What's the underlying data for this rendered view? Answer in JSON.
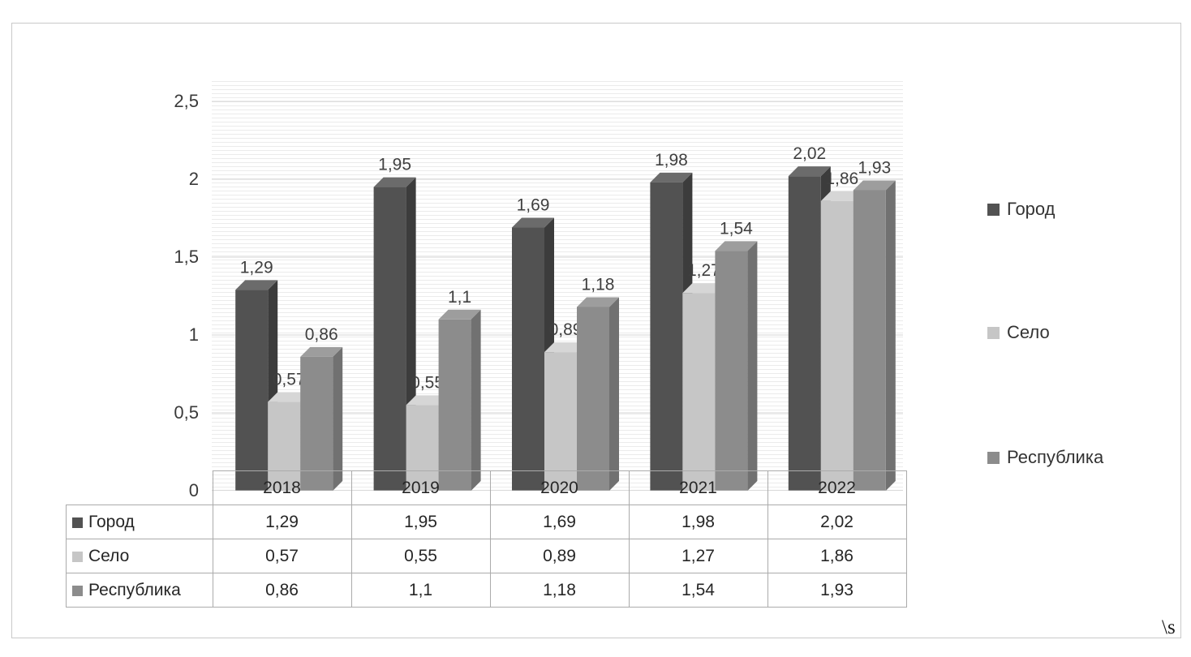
{
  "chart_data": {
    "type": "bar",
    "style": "3d-clustered-column",
    "title": "",
    "xlabel": "",
    "ylabel": "",
    "categories": [
      "2018",
      "2019",
      "2020",
      "2021",
      "2022"
    ],
    "series": [
      {
        "name": "Город",
        "values": [
          1.29,
          1.95,
          1.69,
          1.98,
          2.02
        ],
        "labels": [
          "1,29",
          "1,95",
          "1,69",
          "1,98",
          "2,02"
        ],
        "color": "#525252",
        "top": "#6b6b6b",
        "side": "#3c3c3c"
      },
      {
        "name": "Село",
        "values": [
          0.57,
          0.55,
          0.89,
          1.27,
          1.86
        ],
        "labels": [
          "0,57",
          "0,55",
          "0,89",
          "1,27",
          "1,86"
        ],
        "color": "#c6c6c6",
        "top": "#d6d6d6",
        "side": "#a7a7a7"
      },
      {
        "name": "Республика",
        "values": [
          0.86,
          1.1,
          1.18,
          1.54,
          1.93
        ],
        "labels": [
          "0,86",
          "1,1",
          "1,18",
          "1,54",
          "1,93"
        ],
        "color": "#8c8c8c",
        "top": "#9d9d9d",
        "side": "#717171"
      }
    ],
    "ylim": [
      0,
      2.5
    ],
    "yticks": [
      "0",
      "0,5",
      "1",
      "1,5",
      "2",
      "2,5"
    ],
    "grid": true,
    "legend_position": "right",
    "data_table_shown": true
  },
  "footer_note": "\\s"
}
